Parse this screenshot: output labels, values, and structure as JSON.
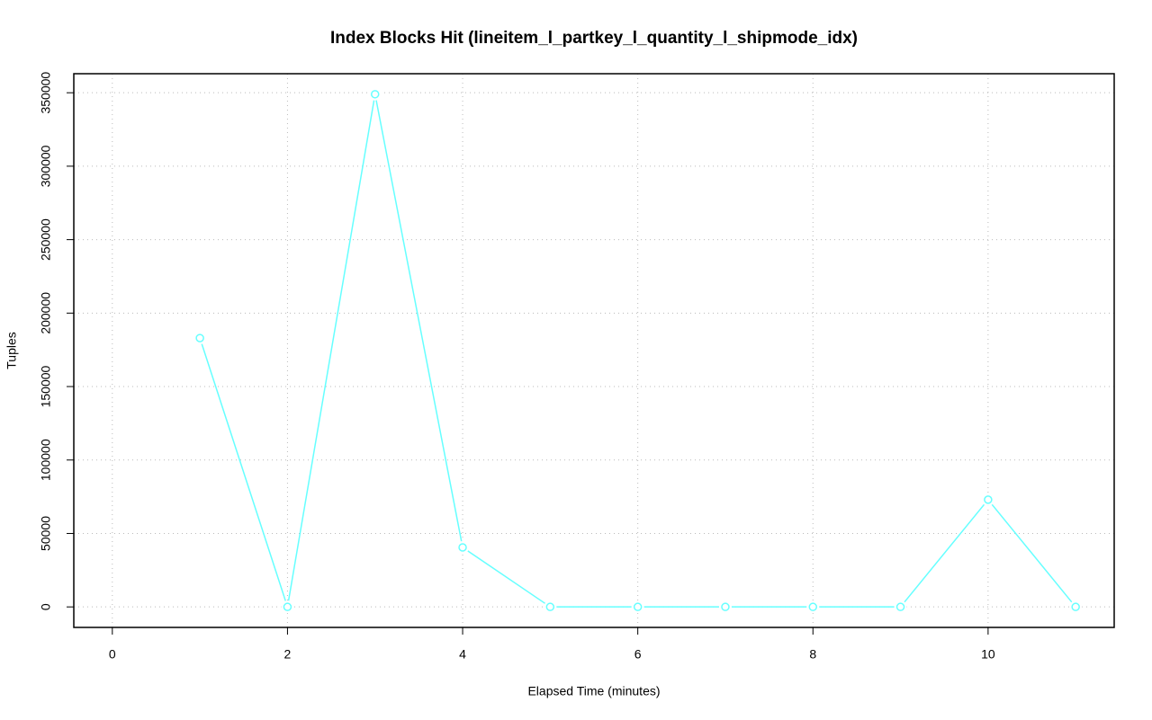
{
  "chart_data": {
    "type": "line",
    "title": "Index Blocks Hit (lineitem_l_partkey_l_quantity_l_shipmode_idx)",
    "xlabel": "Elapsed Time (minutes)",
    "ylabel": "Tuples",
    "x": [
      1,
      2,
      3,
      4,
      5,
      6,
      7,
      8,
      9,
      10,
      11
    ],
    "series": [
      {
        "color": "#66ffff",
        "values": [
          183000,
          0,
          349000,
          40500,
          0,
          0,
          0,
          0,
          0,
          73000,
          0
        ]
      }
    ],
    "xlim": [
      -0.44,
      11.44
    ],
    "xticks": [
      0,
      2,
      4,
      6,
      8,
      10
    ],
    "ylim": [
      -13960,
      362960
    ],
    "yticks": [
      0,
      50000,
      100000,
      150000,
      200000,
      250000,
      300000,
      350000
    ],
    "grid": true
  }
}
